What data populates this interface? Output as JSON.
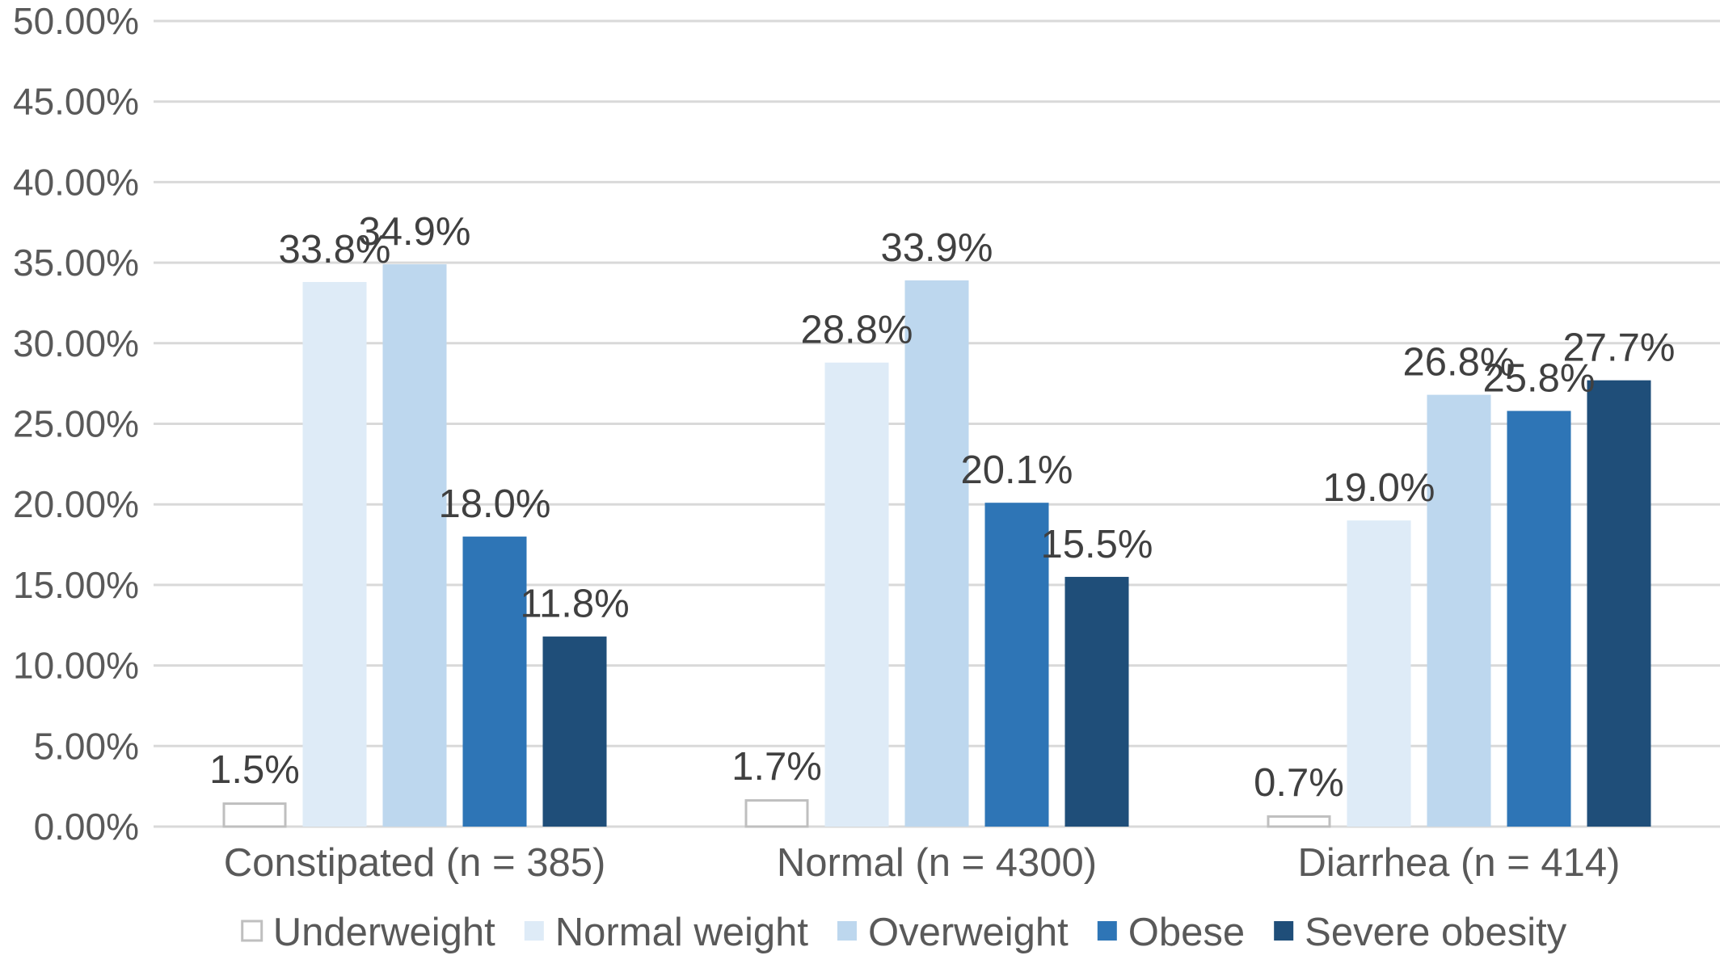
{
  "chart_data": {
    "type": "bar",
    "title": "",
    "xlabel": "",
    "ylabel": "",
    "ylim": [
      0,
      50
    ],
    "ytick_step": 5,
    "ytick_format": "percent-2dp",
    "grid": true,
    "legend_position": "bottom",
    "categories": [
      "Constipated (n = 385)",
      "Normal (n = 4300)",
      "Diarrhea (n = 414)"
    ],
    "series": [
      {
        "name": "Underweight",
        "values": [
          1.5,
          1.7,
          0.7
        ],
        "labels": [
          "1.5%",
          "1.7%",
          "0.7%"
        ],
        "color": "#ffffff",
        "stroke": "#bfbfbf"
      },
      {
        "name": "Normal weight",
        "values": [
          33.8,
          28.8,
          19.0
        ],
        "labels": [
          "33.8%",
          "28.8%",
          "19.0%"
        ],
        "color": "#deebf7",
        "stroke": "none"
      },
      {
        "name": "Overweight",
        "values": [
          34.9,
          33.9,
          26.8
        ],
        "labels": [
          "34.9%",
          "33.9%",
          "26.8%"
        ],
        "color": "#bdd7ee",
        "stroke": "none"
      },
      {
        "name": "Obese",
        "values": [
          18.0,
          20.1,
          25.8
        ],
        "labels": [
          "18.0%",
          "20.1%",
          "25.8%"
        ],
        "color": "#2e75b6",
        "stroke": "none"
      },
      {
        "name": "Severe obesity",
        "values": [
          11.8,
          15.5,
          27.7
        ],
        "labels": [
          "11.8%",
          "15.5%",
          "27.7%"
        ],
        "color": "#1f4e79",
        "stroke": "none"
      }
    ]
  },
  "colors": {
    "grid": "#d9d9d9",
    "text": "#404040",
    "axis_text": "#595959"
  }
}
